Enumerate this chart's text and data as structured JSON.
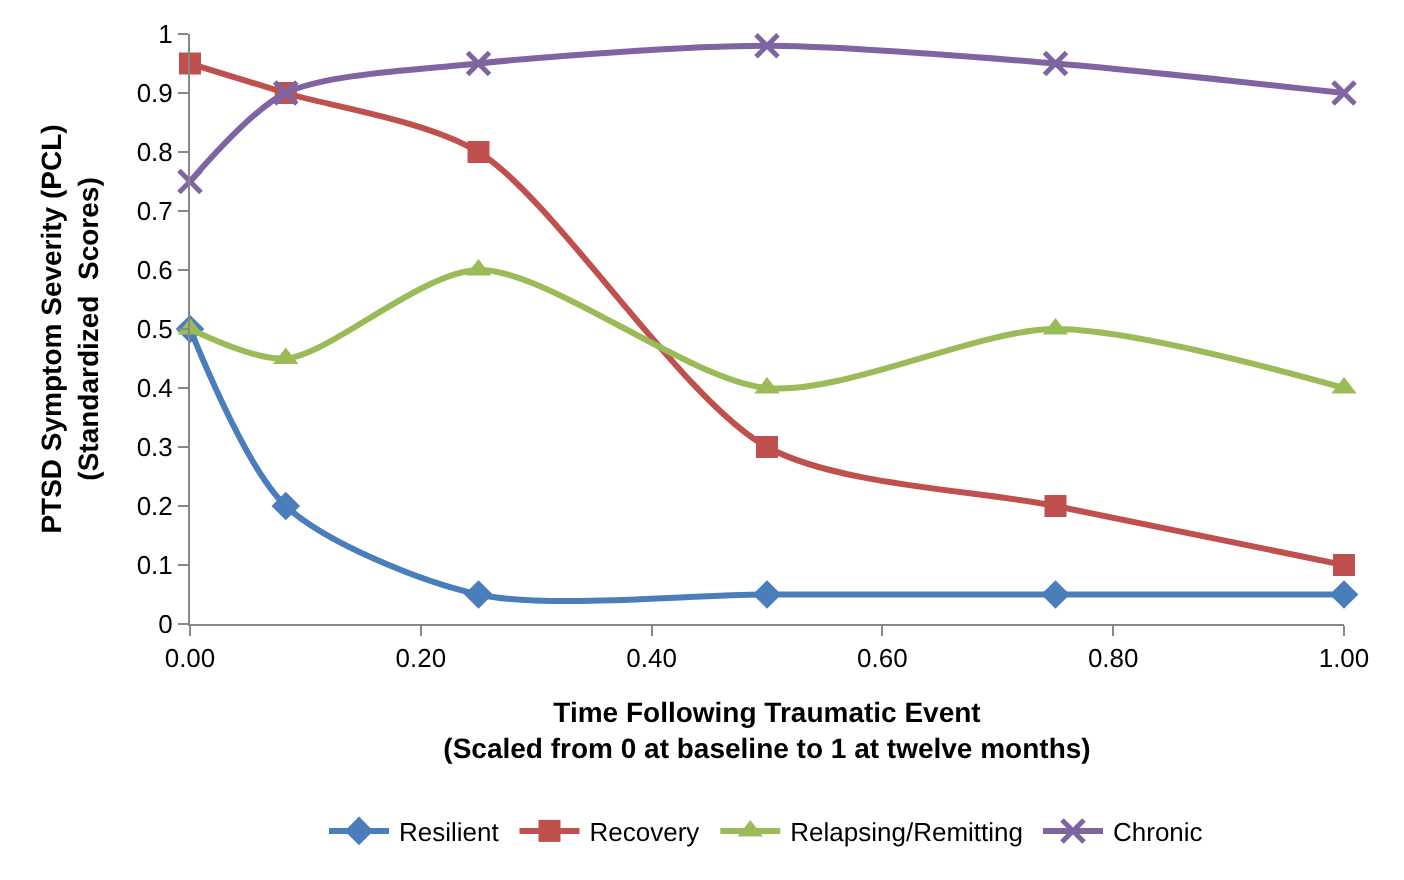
{
  "chart_data": {
    "type": "line",
    "xlabel": "Time Following Traumatic Event\n(Scaled from 0 at baseline to 1 at twelve months)",
    "ylabel": "PTSD Symptom Severity (PCL)\n(Standardized  Scores)",
    "x": [
      0,
      0.083,
      0.25,
      0.5,
      0.75,
      1.0
    ],
    "series": [
      {
        "name": "Resilient",
        "color": "#4a7ebb",
        "marker": "diamond",
        "values": [
          0.5,
          0.2,
          0.05,
          0.05,
          0.05,
          0.05
        ]
      },
      {
        "name": "Recovery",
        "color": "#c0504d",
        "marker": "square",
        "values": [
          0.95,
          0.9,
          0.8,
          0.3,
          0.2,
          0.1
        ]
      },
      {
        "name": "Relapsing/Remitting",
        "color": "#9bbb59",
        "marker": "triangle",
        "values": [
          0.5,
          0.45,
          0.6,
          0.4,
          0.5,
          0.4
        ]
      },
      {
        "name": "Chronic",
        "color": "#8064a2",
        "marker": "cross",
        "values": [
          0.75,
          0.9,
          0.95,
          0.98,
          0.95,
          0.9
        ]
      }
    ],
    "xlim": [
      0,
      1
    ],
    "xticks": [
      {
        "value": 0,
        "label": "0.00"
      },
      {
        "value": 0.2,
        "label": "0.20"
      },
      {
        "value": 0.4,
        "label": "0.40"
      },
      {
        "value": 0.6,
        "label": "0.60"
      },
      {
        "value": 0.8,
        "label": "0.80"
      },
      {
        "value": 1,
        "label": "1.00"
      }
    ],
    "ylim": [
      0,
      1
    ],
    "yticks": [
      0,
      0.1,
      0.2,
      0.3,
      0.4,
      0.5,
      0.6,
      0.7,
      0.8,
      0.9,
      1
    ],
    "legend": "bottom",
    "line_style": "solid"
  }
}
